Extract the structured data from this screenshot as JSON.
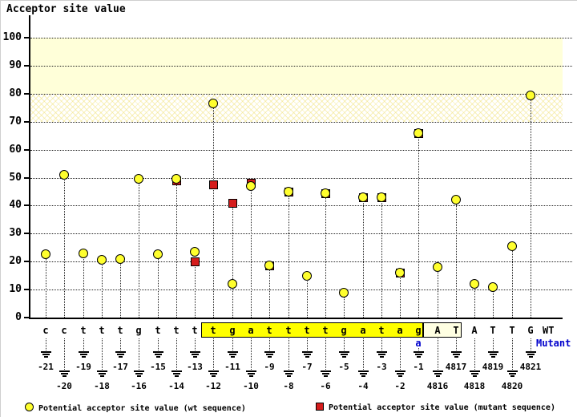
{
  "title": "Acceptor site value",
  "right_labels": {
    "wt": "WT",
    "mutant": "Mutant"
  },
  "legend": {
    "wt": "Potential acceptor site value (wt sequence)",
    "mutant": "Potential acceptor site value (mutant sequence)"
  },
  "colors": {
    "wt_marker": "#ffff2e",
    "mutant_marker": "#d51c1c",
    "mutant_text": "#0000cc",
    "band_solid": "#ffffd9",
    "intron_box": "#ffff00",
    "exon_box": "#ffffe2"
  },
  "chart_data": {
    "type": "scatter",
    "title": "Acceptor site value",
    "ylabel": "Acceptor site value",
    "ylim": [
      0,
      100
    ],
    "yticks": [
      0,
      10,
      20,
      30,
      40,
      50,
      60,
      70,
      80,
      90,
      100
    ],
    "grid": "horizontal dotted lines at every 10",
    "highlight_bands": [
      {
        "range": [
          80,
          100
        ],
        "style": "solid pale yellow"
      },
      {
        "range": [
          70,
          80
        ],
        "style": "crosshatched pale yellow"
      }
    ],
    "series": [
      {
        "name": "Potential acceptor site value (wt sequence)",
        "marker": "yellow circle"
      },
      {
        "name": "Potential acceptor site value (mutant sequence)",
        "marker": "red square"
      }
    ],
    "columns": [
      {
        "base": "c",
        "pos": "-21",
        "wt": 22.5,
        "mut": null,
        "box": null
      },
      {
        "base": "c",
        "pos": "-20",
        "wt": 51,
        "mut": null,
        "box": null
      },
      {
        "base": "t",
        "pos": "-19",
        "wt": 23,
        "mut": null,
        "box": null
      },
      {
        "base": "t",
        "pos": "-18",
        "wt": 20.5,
        "mut": null,
        "box": null
      },
      {
        "base": "t",
        "pos": "-17",
        "wt": 21,
        "mut": null,
        "box": null
      },
      {
        "base": "g",
        "pos": "-16",
        "wt": 49.5,
        "mut": null,
        "box": null
      },
      {
        "base": "t",
        "pos": "-15",
        "wt": 22.5,
        "mut": null,
        "box": null
      },
      {
        "base": "t",
        "pos": "-14",
        "wt": 49.5,
        "mut": 49,
        "box": null
      },
      {
        "base": "t",
        "pos": "-13",
        "wt": 23.5,
        "mut": 20,
        "box": null
      },
      {
        "base": "t",
        "pos": "-12",
        "wt": 76.5,
        "mut": 47.5,
        "box": "yellow"
      },
      {
        "base": "g",
        "pos": "-11",
        "wt": 12,
        "mut": 41,
        "box": "yellow"
      },
      {
        "base": "a",
        "pos": "-10",
        "wt": 47,
        "mut": 48,
        "box": "yellow"
      },
      {
        "base": "t",
        "pos": "-9",
        "wt": 18.5,
        "mut": 18.5,
        "box": "yellow"
      },
      {
        "base": "t",
        "pos": "-8",
        "wt": 45,
        "mut": 45,
        "box": "yellow"
      },
      {
        "base": "t",
        "pos": "-7",
        "wt": 15,
        "mut": null,
        "box": "yellow"
      },
      {
        "base": "t",
        "pos": "-6",
        "wt": 44.5,
        "mut": 44.5,
        "box": "yellow"
      },
      {
        "base": "g",
        "pos": "-5",
        "wt": 9,
        "mut": null,
        "box": "yellow"
      },
      {
        "base": "a",
        "pos": "-4",
        "wt": 43,
        "mut": 43,
        "box": "yellow"
      },
      {
        "base": "t",
        "pos": "-3",
        "wt": 43,
        "mut": 43,
        "box": "yellow"
      },
      {
        "base": "a",
        "pos": "-2",
        "wt": 16,
        "mut": 16,
        "box": "yellow"
      },
      {
        "base": "g",
        "pos": "-1",
        "wt": 66,
        "mut": 66,
        "box": "yellow",
        "mut_base": "a"
      },
      {
        "base": "A",
        "pos": "4816",
        "wt": 18,
        "mut": null,
        "box": "cream"
      },
      {
        "base": "T",
        "pos": "4817",
        "wt": 42,
        "mut": null,
        "box": "cream"
      },
      {
        "base": "A",
        "pos": "4818",
        "wt": 12,
        "mut": null,
        "box": null
      },
      {
        "base": "T",
        "pos": "4819",
        "wt": 11,
        "mut": null,
        "box": null
      },
      {
        "base": "T",
        "pos": "4820",
        "wt": 25.5,
        "mut": null,
        "box": null
      },
      {
        "base": "G",
        "pos": "4821",
        "wt": 79.5,
        "mut": null,
        "box": null
      }
    ]
  }
}
